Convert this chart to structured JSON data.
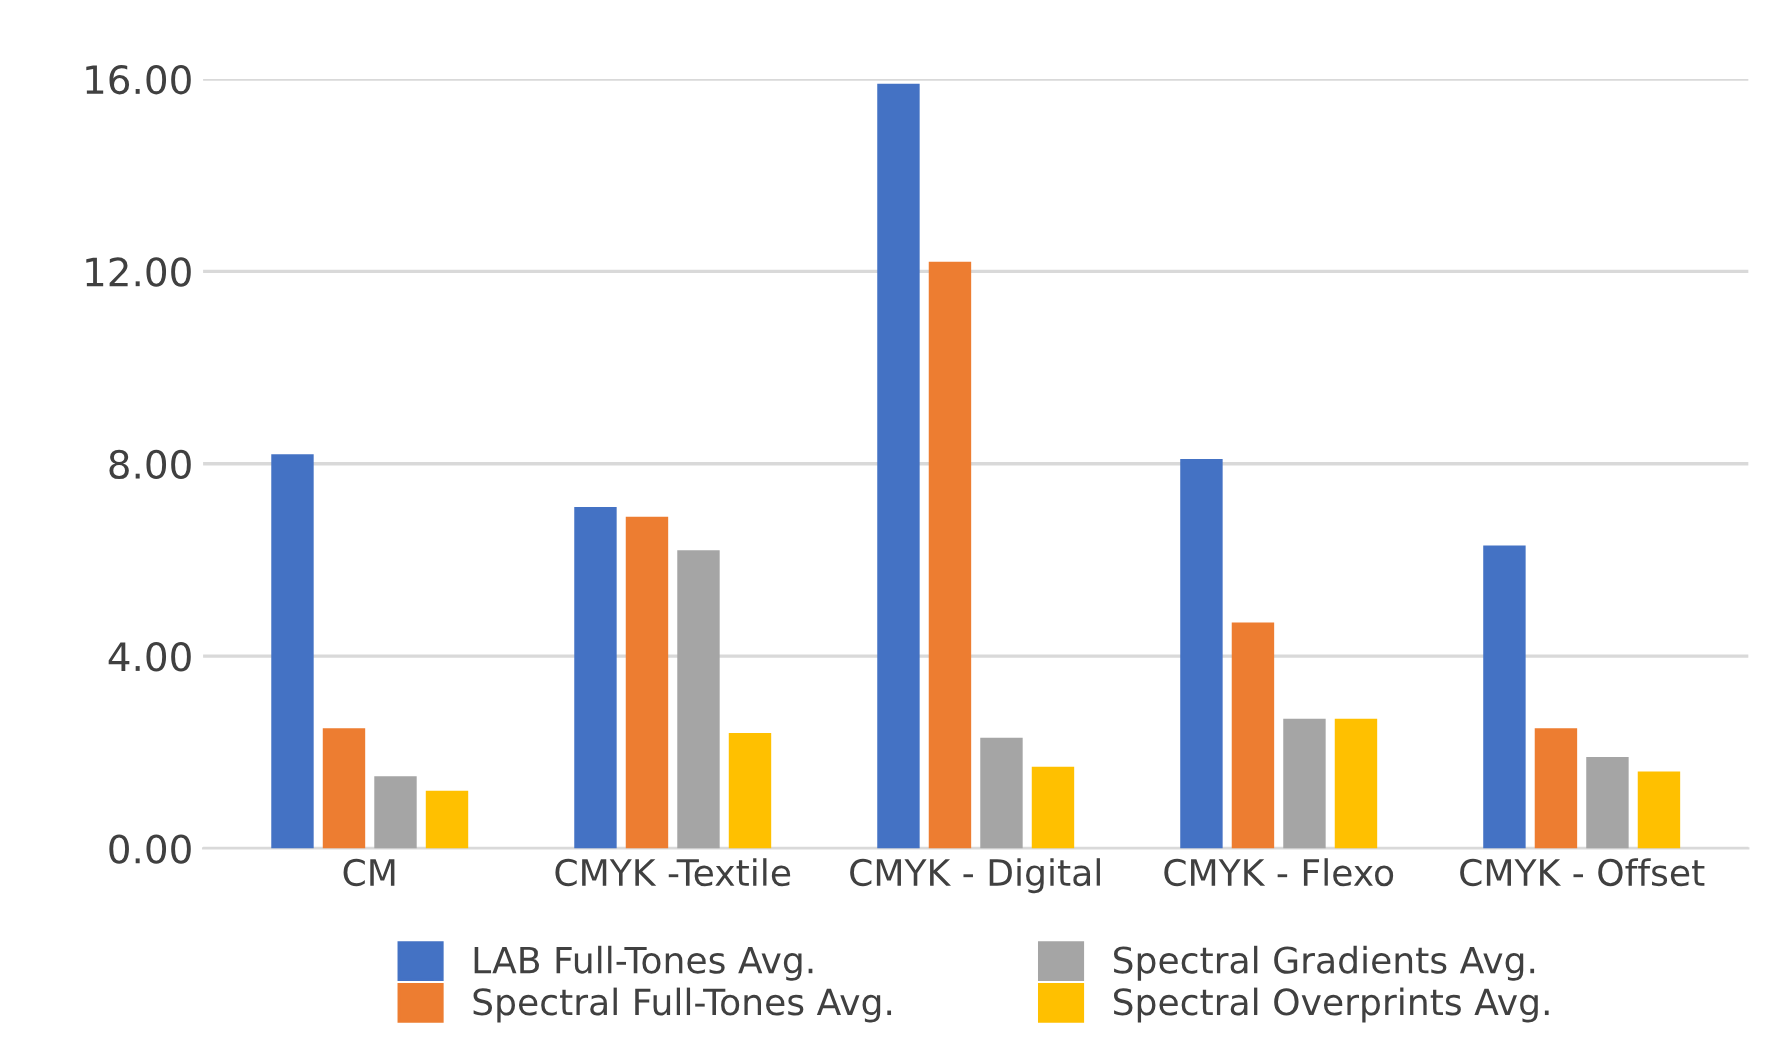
{
  "chart_data": {
    "type": "bar",
    "categories": [
      "CM",
      "CMYK -Textile",
      "CMYK - Digital",
      "CMYK - Flexo",
      "CMYK - Offset"
    ],
    "series": [
      {
        "name": "LAB Full-Tones Avg.",
        "color": "#4472c4",
        "values": [
          8.2,
          7.1,
          15.9,
          8.1,
          6.3
        ]
      },
      {
        "name": "Spectral Full-Tones Avg.",
        "color": "#ed7d31",
        "values": [
          2.5,
          6.9,
          12.2,
          4.7,
          2.5
        ]
      },
      {
        "name": "Spectral Gradients Avg.",
        "color": "#a5a5a5",
        "values": [
          1.5,
          6.2,
          2.3,
          2.7,
          1.9
        ]
      },
      {
        "name": "Spectral Overprints Avg.",
        "color": "#ffc000",
        "values": [
          1.2,
          2.4,
          1.7,
          2.7,
          1.6
        ]
      }
    ],
    "ylim": [
      0,
      16
    ],
    "yticks": [
      {
        "value": 0,
        "label": "0.00"
      },
      {
        "value": 4,
        "label": "4.00"
      },
      {
        "value": 8,
        "label": "8.00"
      },
      {
        "value": 12,
        "label": "12.00"
      },
      {
        "value": 16,
        "label": "16.00"
      }
    ],
    "grid": "y",
    "legend": "bottom"
  }
}
